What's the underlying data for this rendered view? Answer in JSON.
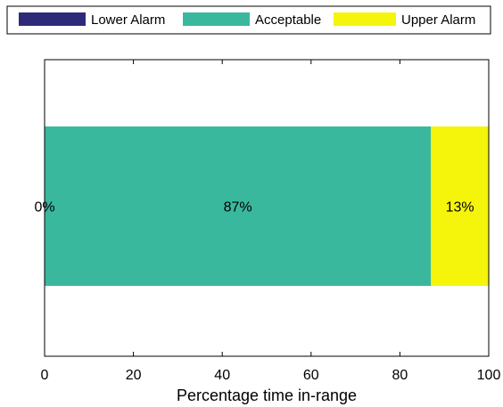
{
  "chart_data": {
    "type": "bar",
    "orientation": "horizontal",
    "stacked": true,
    "title": "",
    "xlabel": "Percentage time in-range",
    "ylabel": "",
    "xlim": [
      0,
      100
    ],
    "xticks": [
      0,
      20,
      40,
      60,
      80,
      100
    ],
    "grid": false,
    "legend_position": "top",
    "series": [
      {
        "name": "Lower Alarm",
        "value": 0,
        "label": "0%",
        "color": "#2e2a7a"
      },
      {
        "name": "Acceptable",
        "value": 87,
        "label": "87%",
        "color": "#3ab89e"
      },
      {
        "name": "Upper Alarm",
        "value": 13,
        "label": "13%",
        "color": "#f5f50c"
      }
    ]
  }
}
